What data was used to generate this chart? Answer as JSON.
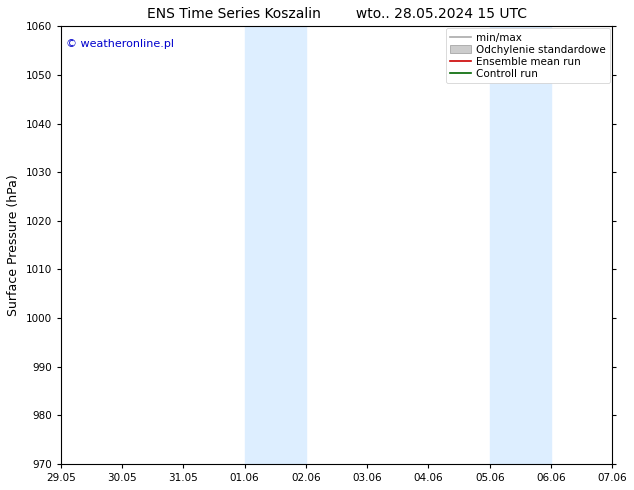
{
  "title": "ENS Time Series Koszalin",
  "subtitle": "wto.. 28.05.2024 15 UTC",
  "ylabel": "Surface Pressure (hPa)",
  "ylim": [
    970,
    1060
  ],
  "yticks": [
    970,
    980,
    990,
    1000,
    1010,
    1020,
    1030,
    1040,
    1050,
    1060
  ],
  "xtick_labels": [
    "29.05",
    "30.05",
    "31.05",
    "01.06",
    "02.06",
    "03.06",
    "04.06",
    "05.06",
    "06.06",
    "07.06"
  ],
  "xtick_positions": [
    0,
    1,
    2,
    3,
    4,
    5,
    6,
    7,
    8,
    9
  ],
  "shaded_bands": [
    {
      "x_start": 3,
      "x_end": 4,
      "color": "#ddeeff"
    },
    {
      "x_start": 7,
      "x_end": 8,
      "color": "#ddeeff"
    }
  ],
  "watermark": "© weatheronline.pl",
  "watermark_color": "#0000cc",
  "legend_items": [
    {
      "label": "min/max",
      "color": "#aaaaaa",
      "style": "line"
    },
    {
      "label": "Odchylenie standardowe",
      "color": "#cccccc",
      "style": "band"
    },
    {
      "label": "Ensemble mean run",
      "color": "#cc0000",
      "style": "line"
    },
    {
      "label": "Controll run",
      "color": "#006600",
      "style": "line"
    }
  ],
  "background_color": "#ffffff",
  "plot_bg_color": "#ffffff",
  "title_fontsize": 10,
  "tick_fontsize": 7.5,
  "ylabel_fontsize": 9,
  "legend_fontsize": 7.5
}
